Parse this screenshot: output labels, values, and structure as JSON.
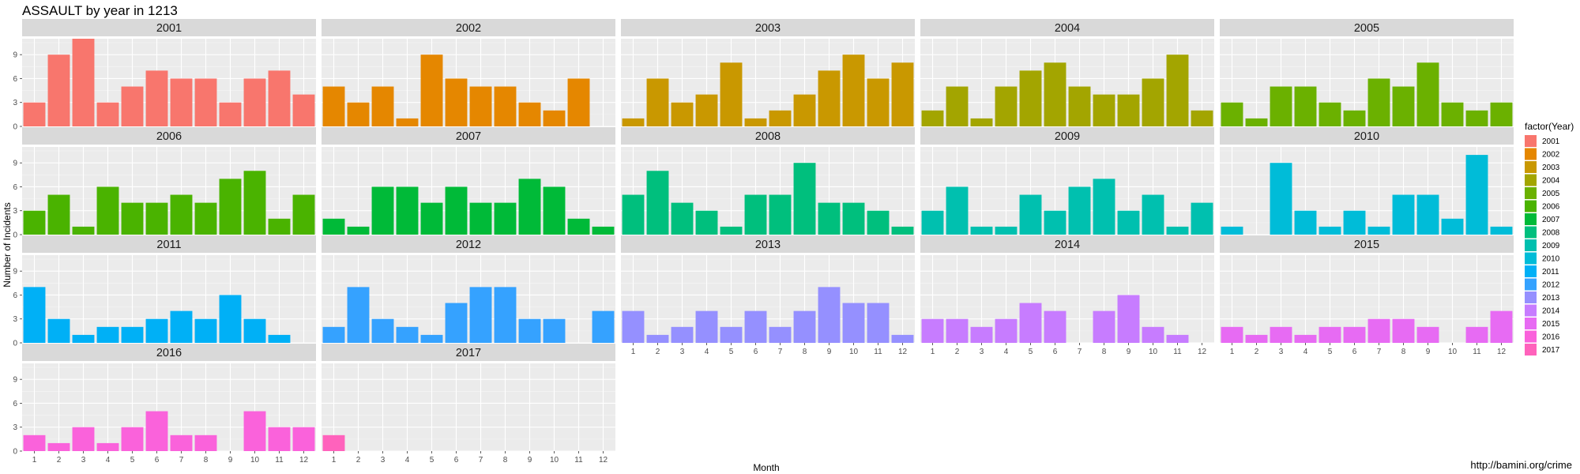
{
  "chart_data": {
    "type": "bar",
    "title": "ASSAULT by year in 1213",
    "xlabel": "Month",
    "ylabel": "Number of Incidents",
    "ylim": [
      0,
      11
    ],
    "y_ticks": [
      0,
      3,
      6,
      9
    ],
    "x_ticks": [
      "1",
      "2",
      "3",
      "4",
      "5",
      "6",
      "7",
      "8",
      "9",
      "10",
      "11",
      "12"
    ],
    "grid": true,
    "legend_title": "factor(Year)",
    "legend_position": "right",
    "facets": [
      {
        "year": "2001",
        "color": "#F8766D",
        "values": [
          3,
          9,
          11,
          3,
          5,
          7,
          6,
          6,
          3,
          6,
          7,
          4
        ]
      },
      {
        "year": "2002",
        "color": "#E58700",
        "values": [
          5,
          3,
          5,
          1,
          9,
          6,
          5,
          5,
          3,
          2,
          6,
          0
        ]
      },
      {
        "year": "2003",
        "color": "#C99800",
        "values": [
          1,
          6,
          3,
          4,
          8,
          1,
          2,
          4,
          7,
          9,
          6,
          8
        ]
      },
      {
        "year": "2004",
        "color": "#A3A500",
        "values": [
          2,
          5,
          1,
          5,
          7,
          8,
          5,
          4,
          4,
          6,
          9,
          2
        ]
      },
      {
        "year": "2005",
        "color": "#6BB100",
        "values": [
          3,
          1,
          5,
          5,
          3,
          2,
          6,
          5,
          8,
          3,
          2,
          3
        ]
      },
      {
        "year": "2006",
        "color": "#00BA38",
        "values": [
          3,
          5,
          1,
          6,
          4,
          4,
          5,
          4,
          7,
          8,
          2,
          5
        ],
        "color_override": "#4AB300"
      },
      {
        "year": "2007",
        "color": "#00BF7D",
        "values": [
          2,
          1,
          6,
          6,
          4,
          6,
          4,
          4,
          7,
          6,
          2,
          1
        ],
        "color_override": "#00BA38"
      },
      {
        "year": "2008",
        "color": "#00C0AF",
        "values": [
          5,
          8,
          4,
          3,
          1,
          5,
          5,
          9,
          4,
          4,
          3,
          1
        ],
        "color_override": "#00BF7D"
      },
      {
        "year": "2009",
        "color": "#00BCD8",
        "values": [
          3,
          6,
          1,
          1,
          5,
          3,
          6,
          7,
          3,
          5,
          1,
          4
        ],
        "color_override": "#00C0AF"
      },
      {
        "year": "2010",
        "color": "#00B0F6",
        "values": [
          1,
          0,
          9,
          3,
          1,
          3,
          1,
          5,
          5,
          2,
          10,
          1
        ],
        "color_override": "#00BCD8"
      },
      {
        "year": "2011",
        "color": "#00B0F6",
        "values": [
          7,
          3,
          1,
          2,
          2,
          3,
          4,
          3,
          6,
          3,
          1,
          0
        ]
      },
      {
        "year": "2012",
        "color": "#35A2FF",
        "values": [
          2,
          7,
          3,
          2,
          1,
          5,
          7,
          7,
          3,
          3,
          0,
          4
        ]
      },
      {
        "year": "2013",
        "color": "#9590FF",
        "values": [
          4,
          1,
          2,
          4,
          2,
          4,
          2,
          4,
          7,
          5,
          5,
          1
        ]
      },
      {
        "year": "2014",
        "color": "#C77CFF",
        "values": [
          3,
          3,
          2,
          3,
          5,
          4,
          0,
          4,
          6,
          2,
          1,
          0
        ]
      },
      {
        "year": "2015",
        "color": "#E76BF3",
        "values": [
          2,
          1,
          2,
          1,
          2,
          2,
          3,
          3,
          2,
          0,
          2,
          4
        ]
      },
      {
        "year": "2016",
        "color": "#FA62DB",
        "values": [
          2,
          1,
          3,
          1,
          3,
          5,
          2,
          2,
          0,
          5,
          3,
          3
        ]
      },
      {
        "year": "2017",
        "color": "#FF62BC",
        "values": [
          2,
          0,
          0,
          0,
          0,
          0,
          0,
          0,
          0,
          0,
          0,
          0
        ]
      }
    ],
    "legend": [
      {
        "label": "2001",
        "color": "#F8766D"
      },
      {
        "label": "2002",
        "color": "#E58700"
      },
      {
        "label": "2003",
        "color": "#C99800"
      },
      {
        "label": "2004",
        "color": "#A3A500"
      },
      {
        "label": "2005",
        "color": "#6BB100"
      },
      {
        "label": "2006",
        "color": "#4AB300"
      },
      {
        "label": "2007",
        "color": "#00BA38"
      },
      {
        "label": "2008",
        "color": "#00BF7D"
      },
      {
        "label": "2009",
        "color": "#00C0AF"
      },
      {
        "label": "2010",
        "color": "#00BCD8"
      },
      {
        "label": "2011",
        "color": "#00B0F6"
      },
      {
        "label": "2012",
        "color": "#35A2FF"
      },
      {
        "label": "2013",
        "color": "#9590FF"
      },
      {
        "label": "2014",
        "color": "#C77CFF"
      },
      {
        "label": "2015",
        "color": "#E76BF3"
      },
      {
        "label": "2016",
        "color": "#FA62DB"
      },
      {
        "label": "2017",
        "color": "#FF62BC"
      }
    ],
    "source": "http://bamini.org/crime"
  }
}
